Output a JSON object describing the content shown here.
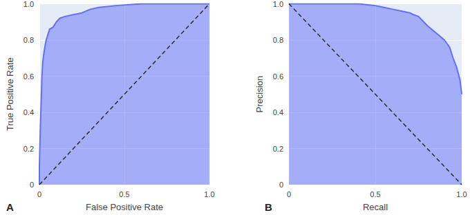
{
  "chart_data": [
    {
      "type": "line",
      "title": "A",
      "x_label": "False Positive Rate",
      "y_label": "True Positive Rate",
      "xlim": [
        0,
        1
      ],
      "ylim": [
        0,
        1
      ],
      "xticks": [
        0,
        0.5,
        {
          "value": 1,
          "label": "1.0"
        }
      ],
      "yticks": [
        0,
        0.2,
        0.4,
        0.6,
        0.8,
        {
          "value": 1,
          "label": "1.0"
        }
      ],
      "grid": true,
      "tick_labels": true,
      "series": [
        {
          "type": "area",
          "color": "#636efa",
          "x": [
            0,
            0,
            0.005,
            0.01,
            0.015,
            0.02,
            0.03,
            0.04,
            0.05,
            0.06,
            0.08,
            0.1,
            0.12,
            0.15,
            0.2,
            0.25,
            0.3,
            0.35,
            0.45,
            0.6,
            1
          ],
          "values": [
            0,
            0.1,
            0.3,
            0.45,
            0.6,
            0.68,
            0.75,
            0.8,
            0.83,
            0.86,
            0.87,
            0.9,
            0.92,
            0.93,
            0.94,
            0.95,
            0.97,
            0.98,
            0.99,
            1,
            1
          ]
        },
        {
          "type": "line",
          "color": "#2a2a2a",
          "line_style": "dashed",
          "x": [
            0,
            1
          ],
          "values": [
            0,
            1
          ]
        }
      ]
    },
    {
      "type": "line",
      "title": "B",
      "x_label": "Recall",
      "y_label": "Precision",
      "xlim": [
        0,
        1
      ],
      "ylim": [
        0,
        1
      ],
      "xticks": [
        0,
        0.5,
        {
          "value": 1,
          "label": "1.0"
        }
      ],
      "yticks": [
        0,
        0.2,
        0.4,
        0.6,
        0.8,
        {
          "value": 1,
          "label": "1.0"
        }
      ],
      "grid": true,
      "tick_labels": true,
      "series": [
        {
          "type": "area",
          "color": "#636efa",
          "x": [
            0,
            0.2,
            0.4,
            0.5,
            0.55,
            0.6,
            0.65,
            0.7,
            0.72,
            0.75,
            0.78,
            0.8,
            0.85,
            0.9,
            0.93,
            0.95,
            0.97,
            0.99,
            1
          ],
          "values": [
            1,
            1,
            1,
            0.99,
            0.98,
            0.97,
            0.96,
            0.95,
            0.94,
            0.93,
            0.9,
            0.88,
            0.84,
            0.8,
            0.76,
            0.7,
            0.65,
            0.58,
            0.5
          ]
        },
        {
          "type": "line",
          "color": "#2a2a2a",
          "line_style": "dashed",
          "x": [
            0,
            1
          ],
          "values": [
            1,
            0
          ]
        }
      ]
    }
  ]
}
